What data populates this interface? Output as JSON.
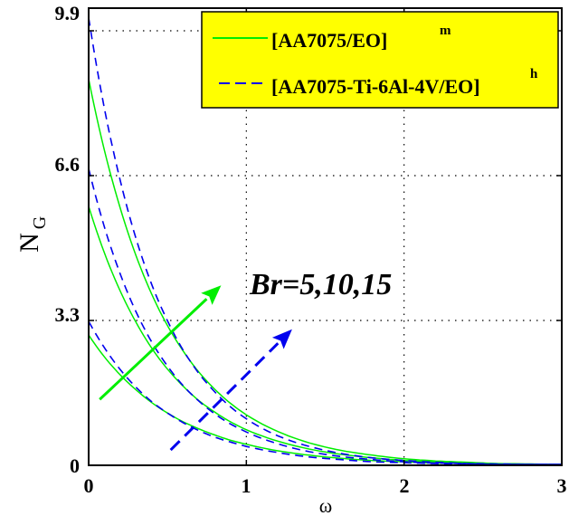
{
  "chart_data": {
    "type": "line",
    "title": "",
    "xlabel": "ω",
    "ylabel": "N_G",
    "ylabel_main": "N",
    "ylabel_sub": "G",
    "xlim": [
      0,
      3
    ],
    "ylim": [
      0,
      10.4
    ],
    "xticks": [
      "0",
      "1",
      "2",
      "3"
    ],
    "yticks": [
      "0",
      "3.3",
      "6.6",
      "9.9"
    ],
    "grid": true,
    "legend_position": "upper right",
    "legend": [
      {
        "label": "[AA7075/EO]",
        "sup": "m",
        "style": "solid",
        "color": "#00ee00"
      },
      {
        "label": "[AA7075-Ti-6Al-4V/EO]",
        "sup": "h",
        "style": "dashed",
        "color": "#0000ee"
      }
    ],
    "annotation": {
      "text": "Br=5,10,15",
      "x": 1.02,
      "y": 3.9
    },
    "arrows": [
      {
        "series": "[AA7075/EO]m",
        "from": [
          0.07,
          1.5
        ],
        "to": [
          0.84,
          4.1
        ],
        "style": "solid",
        "color": "#00ee00"
      },
      {
        "series": "[AA7075-Ti-6Al-4V/EO]h",
        "from": [
          0.52,
          0.35
        ],
        "to": [
          1.29,
          3.1
        ],
        "style": "dashed",
        "color": "#0000ee"
      }
    ],
    "x": [
      0,
      0.1,
      0.2,
      0.3,
      0.4,
      0.5,
      0.6,
      0.7,
      0.8,
      0.9,
      1.0,
      1.2,
      1.4,
      1.6,
      1.8,
      2.0,
      2.2,
      2.4,
      2.6,
      2.8,
      3.0
    ],
    "series": [
      {
        "name": "[AA7075/EO]m Br=5",
        "style": "solid",
        "color": "#00ee00",
        "values": [
          2.97,
          2.47,
          2.06,
          1.72,
          1.43,
          1.19,
          0.99,
          0.83,
          0.69,
          0.57,
          0.48,
          0.33,
          0.23,
          0.16,
          0.11,
          0.08,
          0.05,
          0.04,
          0.03,
          0.02,
          0.01
        ]
      },
      {
        "name": "[AA7075/EO]m Br=10",
        "style": "solid",
        "color": "#00ee00",
        "values": [
          5.9,
          4.84,
          3.97,
          3.26,
          2.67,
          2.19,
          1.8,
          1.47,
          1.21,
          0.99,
          0.81,
          0.55,
          0.37,
          0.25,
          0.17,
          0.11,
          0.08,
          0.05,
          0.03,
          0.02,
          0.01
        ]
      },
      {
        "name": "[AA7075/EO]m Br=15",
        "style": "solid",
        "color": "#00ee00",
        "values": [
          8.8,
          7.18,
          5.86,
          4.78,
          3.9,
          3.18,
          2.6,
          2.12,
          1.73,
          1.41,
          1.15,
          0.77,
          0.51,
          0.34,
          0.23,
          0.15,
          0.1,
          0.07,
          0.04,
          0.03,
          0.02
        ]
      },
      {
        "name": "[AA7075-Ti-6Al-4V/EO]h Br=5",
        "style": "dashed",
        "color": "#0000ee",
        "values": [
          3.28,
          2.68,
          2.18,
          1.78,
          1.45,
          1.19,
          0.97,
          0.79,
          0.64,
          0.53,
          0.43,
          0.29,
          0.19,
          0.13,
          0.08,
          0.06,
          0.04,
          0.02,
          0.02,
          0.01,
          0.01
        ]
      },
      {
        "name": "[AA7075-Ti-6Al-4V/EO]h Br=10",
        "style": "dashed",
        "color": "#0000ee",
        "values": [
          6.76,
          5.43,
          4.36,
          3.5,
          2.81,
          2.26,
          1.81,
          1.46,
          1.17,
          0.94,
          0.76,
          0.49,
          0.31,
          0.2,
          0.13,
          0.08,
          0.05,
          0.04,
          0.02,
          0.02,
          0.01
        ]
      },
      {
        "name": "[AA7075-Ti-6Al-4V/EO]h Br=15",
        "style": "dashed",
        "color": "#0000ee",
        "values": [
          10.2,
          8.13,
          6.49,
          5.17,
          4.12,
          3.29,
          2.62,
          2.09,
          1.67,
          1.33,
          1.06,
          0.67,
          0.43,
          0.27,
          0.17,
          0.11,
          0.07,
          0.04,
          0.03,
          0.02,
          0.01
        ]
      }
    ]
  },
  "colors": {
    "green": "#00ee00",
    "blue": "#0000ee",
    "legend_bg": "#ffff00",
    "axis": "#000000",
    "grid": "#000000"
  }
}
